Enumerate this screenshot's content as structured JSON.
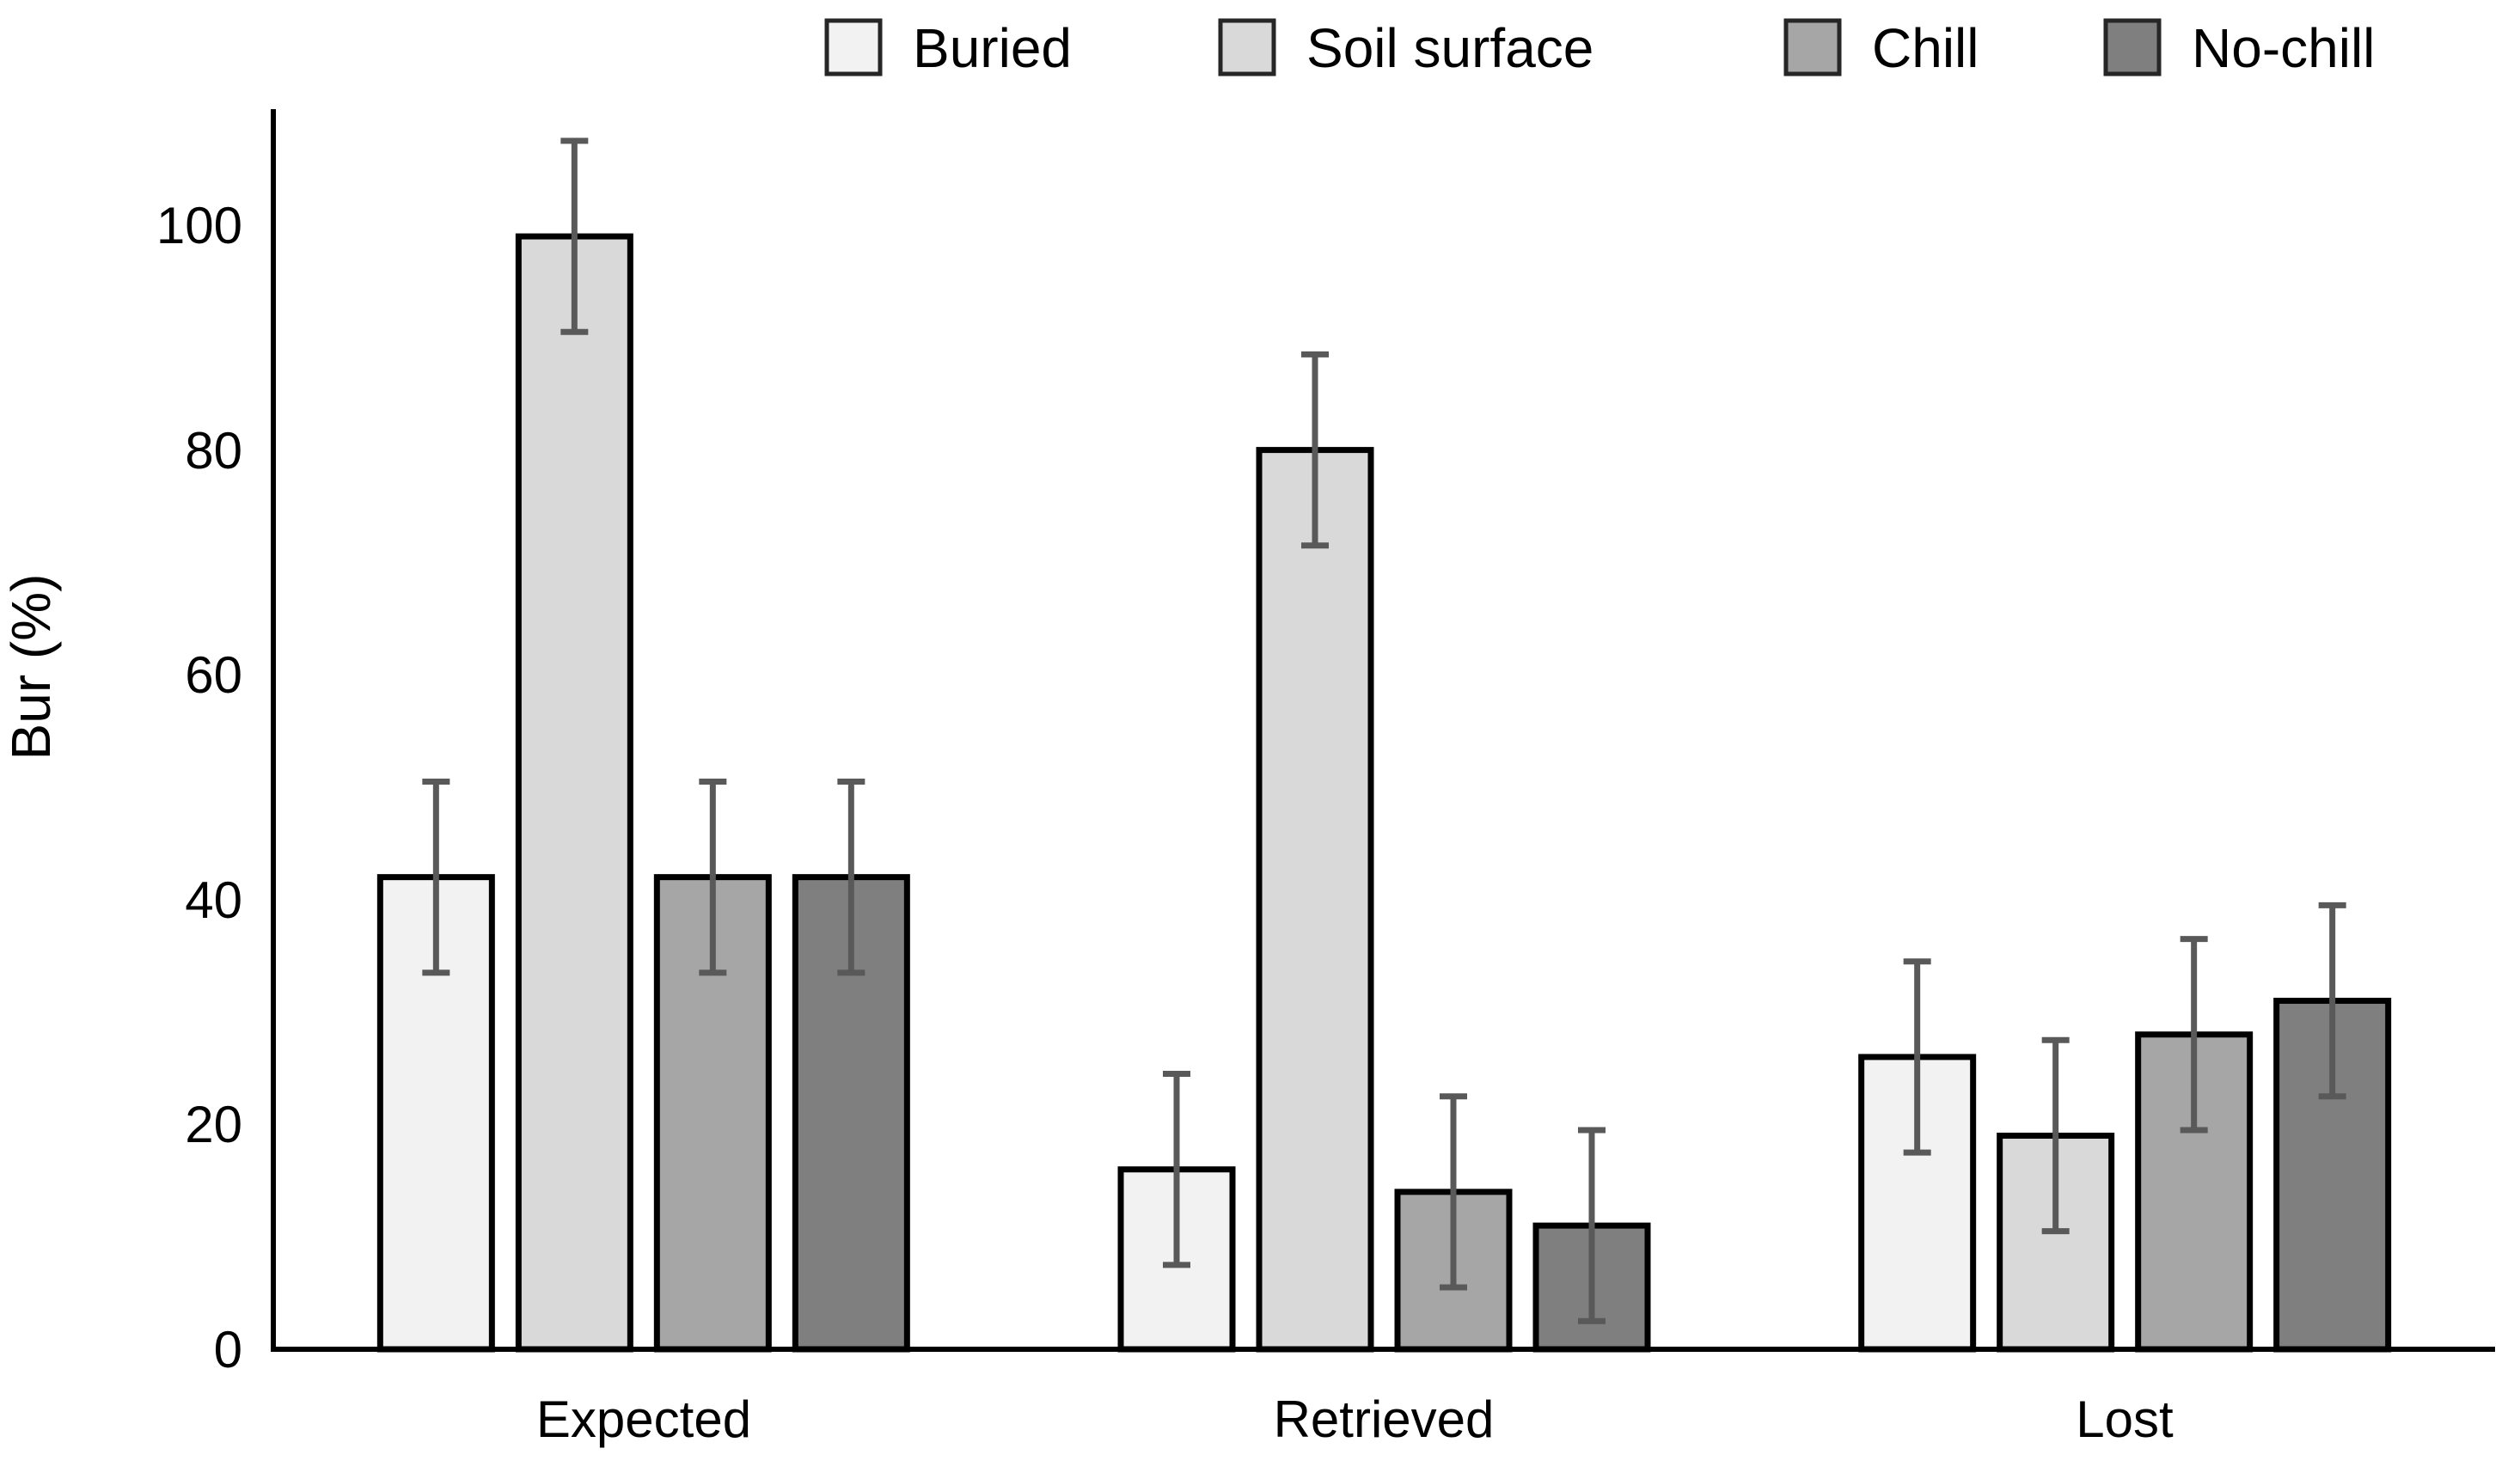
{
  "chart_data": {
    "type": "bar",
    "title": "",
    "xlabel": "",
    "ylabel": "Bur (%)",
    "categories": [
      "Expected",
      "Retrieved",
      "Lost"
    ],
    "series": [
      {
        "name": "Buried",
        "fill": "#f2f2f2",
        "values": [
          42,
          16,
          26
        ],
        "errors": [
          8.5,
          8.5,
          8.5
        ]
      },
      {
        "name": "Soil surface",
        "fill": "#d9d9d9",
        "values": [
          99,
          80,
          19
        ],
        "errors": [
          8.5,
          8.5,
          8.5
        ]
      },
      {
        "name": "Chill",
        "fill": "#a6a6a6",
        "values": [
          42,
          14,
          28
        ],
        "errors": [
          8.5,
          8.5,
          8.5
        ]
      },
      {
        "name": "No-chill",
        "fill": "#7f7f7f",
        "values": [
          42,
          11,
          31
        ],
        "errors": [
          8.5,
          8.5,
          8.5
        ]
      }
    ],
    "ylim": [
      0,
      110
    ],
    "yticks": [
      0,
      20,
      40,
      60,
      80,
      100
    ],
    "ytick_labels": [
      "0",
      "20",
      "40",
      "60",
      "80",
      "100"
    ],
    "grid": false,
    "legend_position": "top",
    "colors": {
      "bar_border": "#000000",
      "error_bar": "#595959",
      "axis": "#000000",
      "text": "#000000",
      "background": "#ffffff",
      "legend_swatch_border": "#262626"
    }
  }
}
